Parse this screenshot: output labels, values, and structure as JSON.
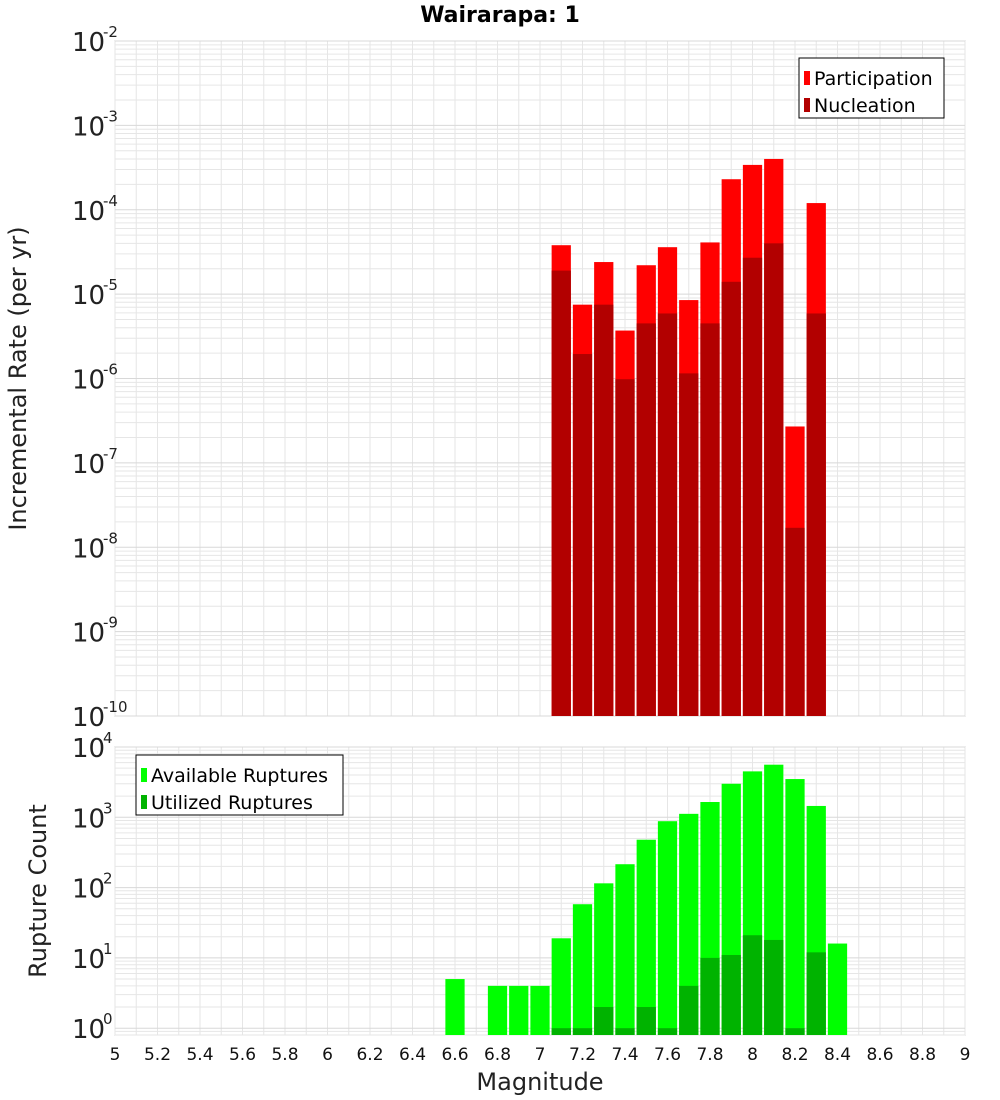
{
  "title": "Wairarapa: 1",
  "colors": {
    "participation": "#ff0000",
    "nucleation": "#b20000",
    "available": "#00ff00",
    "utilized": "#00b300",
    "grid": "#e6e6e6",
    "frame": "#bbbbbb"
  },
  "chart_data": [
    {
      "type": "bar",
      "ylabel": "Incremental Rate (per yr)",
      "yscale": "log",
      "ylim": [
        1e-10,
        0.01
      ],
      "xlim": [
        5,
        9
      ],
      "grid": true,
      "legend_placement": "top-right",
      "yticks": [
        {
          "base": "10",
          "exp": "-10",
          "value": 1e-10
        },
        {
          "base": "10",
          "exp": "-9",
          "value": 1e-09
        },
        {
          "base": "10",
          "exp": "-8",
          "value": 1e-08
        },
        {
          "base": "10",
          "exp": "-7",
          "value": 1e-07
        },
        {
          "base": "10",
          "exp": "-6",
          "value": 1e-06
        },
        {
          "base": "10",
          "exp": "-5",
          "value": 1e-05
        },
        {
          "base": "10",
          "exp": "-4",
          "value": 0.0001
        },
        {
          "base": "10",
          "exp": "-3",
          "value": 0.001
        },
        {
          "base": "10",
          "exp": "-2",
          "value": 0.01
        }
      ],
      "x": [
        7.1,
        7.2,
        7.3,
        7.4,
        7.5,
        7.6,
        7.7,
        7.8,
        7.9,
        8.0,
        8.1,
        8.2,
        8.3
      ],
      "series": [
        {
          "name": "Participation",
          "values": [
            3.8e-05,
            7.5e-06,
            2.4e-05,
            3.7e-06,
            2.2e-05,
            3.6e-05,
            8.5e-06,
            4.1e-05,
            0.00023,
            0.00034,
            0.0004,
            2.7e-07,
            0.00012
          ]
        },
        {
          "name": "Nucleation",
          "values": [
            1.9e-05,
            1.95e-06,
            7.5e-06,
            9.8e-07,
            4.5e-06,
            5.9e-06,
            1.15e-06,
            4.5e-06,
            1.4e-05,
            2.7e-05,
            4e-05,
            1.7e-08,
            5.9e-06
          ]
        }
      ]
    },
    {
      "type": "bar",
      "ylabel": "Rupture Count",
      "xlabel": "Magnitude",
      "yscale": "log",
      "ylim": [
        0.8,
        10000
      ],
      "xlim": [
        5,
        9
      ],
      "grid": true,
      "legend_placement": "top-left",
      "yticks": [
        {
          "base": "10",
          "exp": "0",
          "value": 1
        },
        {
          "base": "10",
          "exp": "1",
          "value": 10
        },
        {
          "base": "10",
          "exp": "2",
          "value": 100
        },
        {
          "base": "10",
          "exp": "3",
          "value": 1000
        },
        {
          "base": "10",
          "exp": "4",
          "value": 10000
        }
      ],
      "xticks": [
        "5",
        "5.2",
        "5.4",
        "5.6",
        "5.8",
        "6",
        "6.2",
        "6.4",
        "6.6",
        "6.8",
        "7",
        "7.2",
        "7.4",
        "7.6",
        "7.8",
        "8",
        "8.2",
        "8.4",
        "8.6",
        "8.8",
        "9"
      ],
      "x": [
        6.6,
        6.8,
        6.9,
        7.0,
        7.1,
        7.2,
        7.3,
        7.4,
        7.5,
        7.6,
        7.7,
        7.8,
        7.9,
        8.0,
        8.1,
        8.2,
        8.3,
        8.4
      ],
      "series": [
        {
          "name": "Available Ruptures",
          "values": [
            5,
            4,
            4,
            4,
            19,
            58,
            115,
            215,
            480,
            880,
            1120,
            1650,
            3000,
            4500,
            5600,
            3500,
            1450,
            16
          ]
        },
        {
          "name": "Utilized Ruptures",
          "values": [
            0,
            0,
            0,
            0,
            1,
            1,
            2,
            1,
            2,
            1,
            4,
            10,
            11,
            21,
            18,
            1,
            12,
            0
          ]
        }
      ]
    }
  ]
}
